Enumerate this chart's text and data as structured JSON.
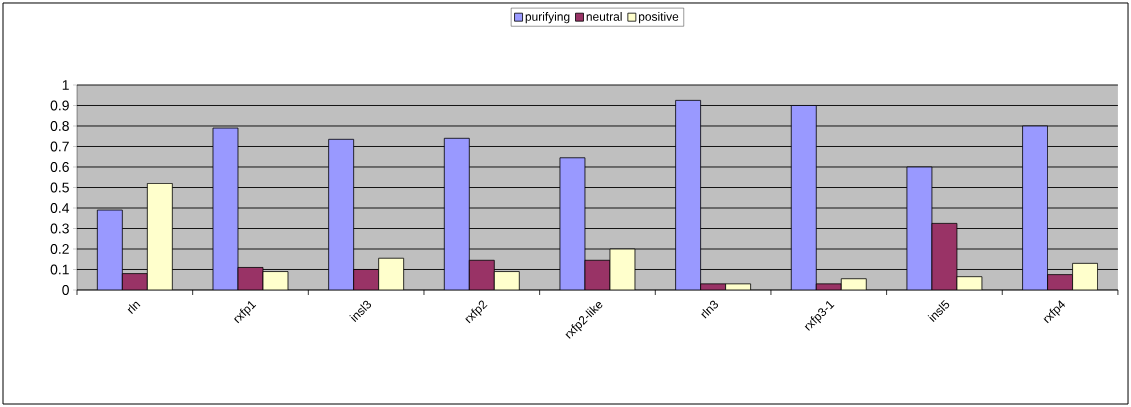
{
  "chart_data": {
    "type": "bar",
    "categories": [
      "rln",
      "rxfp1",
      "insl3",
      "rxfp2",
      "rxfp2-like",
      "rln3",
      "rxfp3-1",
      "insl5",
      "rxfp4"
    ],
    "series": [
      {
        "name": "purifying",
        "color": "#9999ff",
        "values": [
          0.39,
          0.79,
          0.735,
          0.74,
          0.645,
          0.925,
          0.9,
          0.6,
          0.8
        ]
      },
      {
        "name": "neutral",
        "color": "#993366",
        "values": [
          0.08,
          0.11,
          0.1,
          0.145,
          0.145,
          0.03,
          0.03,
          0.325,
          0.075
        ]
      },
      {
        "name": "positive",
        "color": "#ffffcc",
        "values": [
          0.52,
          0.09,
          0.155,
          0.09,
          0.2,
          0.03,
          0.055,
          0.065,
          0.13
        ]
      }
    ],
    "ylim": [
      0,
      1
    ],
    "yticks": [
      0,
      0.1,
      0.2,
      0.3,
      0.4,
      0.5,
      0.6,
      0.7,
      0.8,
      0.9,
      1
    ],
    "grid": "y",
    "legend": "top"
  }
}
